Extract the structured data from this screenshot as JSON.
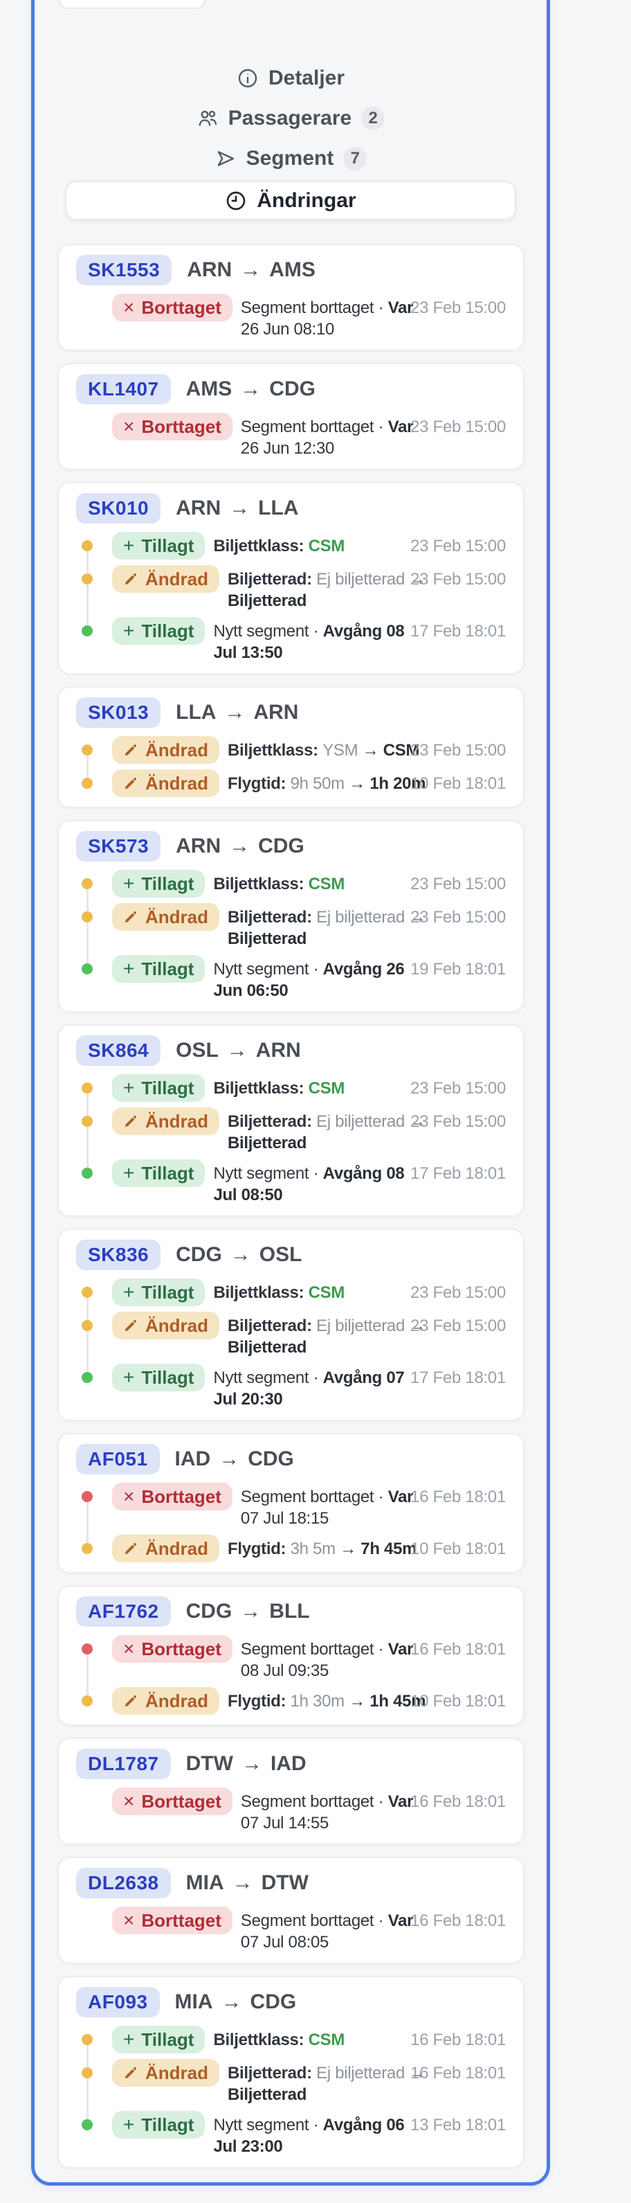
{
  "nav": {
    "items": [
      {
        "id": "detaljer",
        "icon": "info-icon",
        "label": "Detaljer"
      },
      {
        "id": "passagerare",
        "icon": "people-icon",
        "label": "Passagerare",
        "count": "2"
      },
      {
        "id": "segment",
        "icon": "send-icon",
        "label": "Segment",
        "count": "7"
      }
    ],
    "active": {
      "id": "andringar",
      "icon": "clock-icon",
      "label": "Ändringar"
    }
  },
  "glyphs": {
    "route_arrow": "→",
    "plus": "+",
    "cross": "×"
  },
  "badge_types": {
    "added": {
      "label": "Tillagt",
      "icon": "plus-icon"
    },
    "changed": {
      "label": "Ändrad",
      "icon": "pencil-icon"
    },
    "removed": {
      "label": "Borttaget",
      "icon": "x-icon"
    }
  },
  "colors": {
    "panel_border": "#4b7ce2",
    "flight_pill_bg": "#dde4f8",
    "flight_pill_text": "#2b3fc0",
    "added_bg": "#d9efdf",
    "added_text": "#2c6e45",
    "changed_bg": "#f6e5c2",
    "changed_text": "#b05c25",
    "removed_bg": "#f8dcdd",
    "removed_text": "#b22d33",
    "dot_amber": "#efba4c",
    "dot_green": "#4ec25d",
    "dot_red": "#e15f63",
    "value_green": "#3b9c4e",
    "timestamp": "#9aa0a9"
  },
  "cards": [
    {
      "flight": "SK1553",
      "from": "ARN",
      "to": "AMS",
      "rows": [
        {
          "type": "removed",
          "dot": "none",
          "time": "23 Feb 15:00",
          "lines": [
            [
              {
                "t": "Segment borttaget · "
              },
              {
                "t": "Var",
                "s": "bold"
              }
            ],
            [
              {
                "t": "26 Jun 08:10"
              }
            ]
          ]
        }
      ]
    },
    {
      "flight": "KL1407",
      "from": "AMS",
      "to": "CDG",
      "rows": [
        {
          "type": "removed",
          "dot": "none",
          "time": "23 Feb 15:00",
          "lines": [
            [
              {
                "t": "Segment borttaget · "
              },
              {
                "t": "Var",
                "s": "bold"
              }
            ],
            [
              {
                "t": "26 Jun 12:30"
              }
            ]
          ]
        }
      ]
    },
    {
      "flight": "SK010",
      "from": "ARN",
      "to": "LLA",
      "rows": [
        {
          "type": "added",
          "dot": "amber",
          "time": "23 Feb 15:00",
          "lines": [
            [
              {
                "t": "Biljettklass: ",
                "s": "label"
              },
              {
                "t": "CSM",
                "s": "green"
              }
            ]
          ]
        },
        {
          "type": "changed",
          "dot": "amber",
          "time": "23 Feb 15:00",
          "lines": [
            [
              {
                "t": "Biljetterad: ",
                "s": "label"
              },
              {
                "t": "Ej biljetterad",
                "s": "muted"
              },
              {
                "t": " →"
              }
            ],
            [
              {
                "t": "Biljetterad",
                "s": "bold"
              }
            ]
          ]
        },
        {
          "type": "added",
          "dot": "green",
          "time": "17 Feb 18:01",
          "lines": [
            [
              {
                "t": "Nytt segment · "
              },
              {
                "t": "Avgång 08",
                "s": "bold"
              }
            ],
            [
              {
                "t": "Jul 13:50",
                "s": "bold"
              }
            ]
          ]
        }
      ]
    },
    {
      "flight": "SK013",
      "from": "LLA",
      "to": "ARN",
      "rows": [
        {
          "type": "changed",
          "dot": "amber",
          "time": "23 Feb 15:00",
          "lines": [
            [
              {
                "t": "Biljettklass: ",
                "s": "label"
              },
              {
                "t": "YSM",
                "s": "muted"
              },
              {
                "t": " → "
              },
              {
                "t": "CSM",
                "s": "bold"
              }
            ]
          ]
        },
        {
          "type": "changed",
          "dot": "amber",
          "time": "10 Feb 18:01",
          "lines": [
            [
              {
                "t": "Flygtid: ",
                "s": "label"
              },
              {
                "t": "9h 50m",
                "s": "muted"
              },
              {
                "t": " → "
              },
              {
                "t": "1h 20m",
                "s": "bold"
              }
            ]
          ]
        }
      ]
    },
    {
      "flight": "SK573",
      "from": "ARN",
      "to": "CDG",
      "rows": [
        {
          "type": "added",
          "dot": "amber",
          "time": "23 Feb 15:00",
          "lines": [
            [
              {
                "t": "Biljettklass: ",
                "s": "label"
              },
              {
                "t": "CSM",
                "s": "green"
              }
            ]
          ]
        },
        {
          "type": "changed",
          "dot": "amber",
          "time": "23 Feb 15:00",
          "lines": [
            [
              {
                "t": "Biljetterad: ",
                "s": "label"
              },
              {
                "t": "Ej biljetterad",
                "s": "muted"
              },
              {
                "t": " →"
              }
            ],
            [
              {
                "t": "Biljetterad",
                "s": "bold"
              }
            ]
          ]
        },
        {
          "type": "added",
          "dot": "green",
          "time": "19 Feb 18:01",
          "lines": [
            [
              {
                "t": "Nytt segment · "
              },
              {
                "t": "Avgång 26",
                "s": "bold"
              }
            ],
            [
              {
                "t": "Jun 06:50",
                "s": "bold"
              }
            ]
          ]
        }
      ]
    },
    {
      "flight": "SK864",
      "from": "OSL",
      "to": "ARN",
      "rows": [
        {
          "type": "added",
          "dot": "amber",
          "time": "23 Feb 15:00",
          "lines": [
            [
              {
                "t": "Biljettklass: ",
                "s": "label"
              },
              {
                "t": "CSM",
                "s": "green"
              }
            ]
          ]
        },
        {
          "type": "changed",
          "dot": "amber",
          "time": "23 Feb 15:00",
          "lines": [
            [
              {
                "t": "Biljetterad: ",
                "s": "label"
              },
              {
                "t": "Ej biljetterad",
                "s": "muted"
              },
              {
                "t": " →"
              }
            ],
            [
              {
                "t": "Biljetterad",
                "s": "bold"
              }
            ]
          ]
        },
        {
          "type": "added",
          "dot": "green",
          "time": "17 Feb 18:01",
          "lines": [
            [
              {
                "t": "Nytt segment · "
              },
              {
                "t": "Avgång 08",
                "s": "bold"
              }
            ],
            [
              {
                "t": "Jul 08:50",
                "s": "bold"
              }
            ]
          ]
        }
      ]
    },
    {
      "flight": "SK836",
      "from": "CDG",
      "to": "OSL",
      "rows": [
        {
          "type": "added",
          "dot": "amber",
          "time": "23 Feb 15:00",
          "lines": [
            [
              {
                "t": "Biljettklass: ",
                "s": "label"
              },
              {
                "t": "CSM",
                "s": "green"
              }
            ]
          ]
        },
        {
          "type": "changed",
          "dot": "amber",
          "time": "23 Feb 15:00",
          "lines": [
            [
              {
                "t": "Biljetterad: ",
                "s": "label"
              },
              {
                "t": "Ej biljetterad",
                "s": "muted"
              },
              {
                "t": " →"
              }
            ],
            [
              {
                "t": "Biljetterad",
                "s": "bold"
              }
            ]
          ]
        },
        {
          "type": "added",
          "dot": "green",
          "time": "17 Feb 18:01",
          "lines": [
            [
              {
                "t": "Nytt segment · "
              },
              {
                "t": "Avgång 07",
                "s": "bold"
              }
            ],
            [
              {
                "t": "Jul 20:30",
                "s": "bold"
              }
            ]
          ]
        }
      ]
    },
    {
      "flight": "AF051",
      "from": "IAD",
      "to": "CDG",
      "rows": [
        {
          "type": "removed",
          "dot": "red",
          "time": "16 Feb 18:01",
          "lines": [
            [
              {
                "t": "Segment borttaget · "
              },
              {
                "t": "Var",
                "s": "bold"
              }
            ],
            [
              {
                "t": "07 Jul 18:15"
              }
            ]
          ]
        },
        {
          "type": "changed",
          "dot": "amber",
          "time": "10 Feb 18:01",
          "lines": [
            [
              {
                "t": "Flygtid: ",
                "s": "label"
              },
              {
                "t": "3h 5m",
                "s": "muted"
              },
              {
                "t": " → "
              },
              {
                "t": "7h 45m",
                "s": "bold"
              }
            ]
          ]
        }
      ]
    },
    {
      "flight": "AF1762",
      "from": "CDG",
      "to": "BLL",
      "rows": [
        {
          "type": "removed",
          "dot": "red",
          "time": "16 Feb 18:01",
          "lines": [
            [
              {
                "t": "Segment borttaget · "
              },
              {
                "t": "Var",
                "s": "bold"
              }
            ],
            [
              {
                "t": "08 Jul 09:35"
              }
            ]
          ]
        },
        {
          "type": "changed",
          "dot": "amber",
          "time": "10 Feb 18:01",
          "lines": [
            [
              {
                "t": "Flygtid: ",
                "s": "label"
              },
              {
                "t": "1h 30m",
                "s": "muted"
              },
              {
                "t": " → "
              },
              {
                "t": "1h 45m",
                "s": "bold"
              }
            ]
          ]
        }
      ]
    },
    {
      "flight": "DL1787",
      "from": "DTW",
      "to": "IAD",
      "rows": [
        {
          "type": "removed",
          "dot": "none",
          "time": "16 Feb 18:01",
          "lines": [
            [
              {
                "t": "Segment borttaget · "
              },
              {
                "t": "Var",
                "s": "bold"
              }
            ],
            [
              {
                "t": "07 Jul 14:55"
              }
            ]
          ]
        }
      ]
    },
    {
      "flight": "DL2638",
      "from": "MIA",
      "to": "DTW",
      "rows": [
        {
          "type": "removed",
          "dot": "none",
          "time": "16 Feb 18:01",
          "lines": [
            [
              {
                "t": "Segment borttaget · "
              },
              {
                "t": "Var",
                "s": "bold"
              }
            ],
            [
              {
                "t": "07 Jul 08:05"
              }
            ]
          ]
        }
      ]
    },
    {
      "flight": "AF093",
      "from": "MIA",
      "to": "CDG",
      "rows": [
        {
          "type": "added",
          "dot": "amber",
          "time": "16 Feb 18:01",
          "lines": [
            [
              {
                "t": "Biljettklass: ",
                "s": "label"
              },
              {
                "t": "CSM",
                "s": "green"
              }
            ]
          ]
        },
        {
          "type": "changed",
          "dot": "amber",
          "time": "16 Feb 18:01",
          "lines": [
            [
              {
                "t": "Biljetterad: ",
                "s": "label"
              },
              {
                "t": "Ej biljetterad",
                "s": "muted"
              },
              {
                "t": " →"
              }
            ],
            [
              {
                "t": "Biljetterad",
                "s": "bold"
              }
            ]
          ]
        },
        {
          "type": "added",
          "dot": "green",
          "time": "13 Feb 18:01",
          "lines": [
            [
              {
                "t": "Nytt segment · "
              },
              {
                "t": "Avgång 06",
                "s": "bold"
              }
            ],
            [
              {
                "t": "Jul 23:00",
                "s": "bold"
              }
            ]
          ]
        }
      ]
    }
  ]
}
